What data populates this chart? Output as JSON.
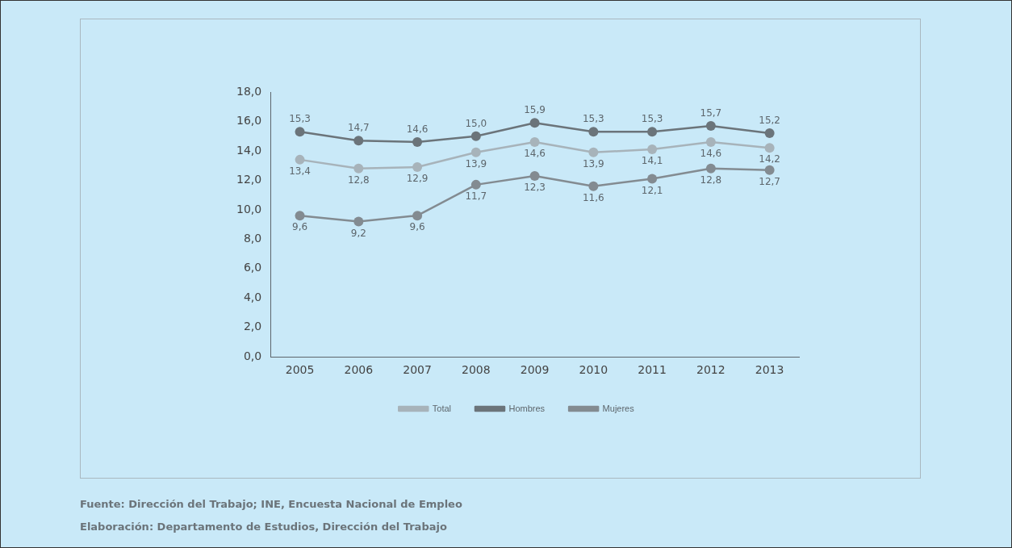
{
  "chart_data": {
    "type": "line",
    "categories": [
      "2005",
      "2006",
      "2007",
      "2008",
      "2009",
      "2010",
      "2011",
      "2012",
      "2013"
    ],
    "series": [
      {
        "name": "Total",
        "color": "#a7b3ba",
        "values": [
          13.4,
          12.8,
          12.9,
          13.9,
          14.6,
          13.9,
          14.1,
          14.6,
          14.2
        ],
        "value_labels": [
          "13,4",
          "12,8",
          "12,9",
          "13,9",
          "14,6",
          "13,9",
          "14,1",
          "14,6",
          "14,2"
        ]
      },
      {
        "name": "Hombres",
        "color": "#6b747a",
        "values": [
          15.3,
          14.7,
          14.6,
          15.0,
          15.9,
          15.3,
          15.3,
          15.7,
          15.2
        ],
        "value_labels": [
          "15,3",
          "14,7",
          "14,6",
          "15,0",
          "15,9",
          "15,3",
          "15,3",
          "15,7",
          "15,2"
        ]
      },
      {
        "name": "Mujeres",
        "color": "#838b91",
        "values": [
          9.6,
          9.2,
          9.6,
          11.7,
          12.3,
          11.6,
          12.1,
          12.8,
          12.7
        ],
        "value_labels": [
          "9,6",
          "9,2",
          "9,6",
          "11,7",
          "12,3",
          "11,6",
          "12,1",
          "12,8",
          "12,7"
        ]
      }
    ],
    "ylim": [
      0,
      18
    ],
    "yticks": [
      {
        "value": 0,
        "label": "0,0"
      },
      {
        "value": 2,
        "label": "2,0"
      },
      {
        "value": 4,
        "label": "4,0"
      },
      {
        "value": 6,
        "label": "6,0"
      },
      {
        "value": 8,
        "label": "8,0"
      },
      {
        "value": 10,
        "label": "10,0"
      },
      {
        "value": 12,
        "label": "12,0"
      },
      {
        "value": 14,
        "label": "14,0"
      },
      {
        "value": 16,
        "label": "16,0"
      },
      {
        "value": 18,
        "label": "18,0"
      }
    ],
    "grid": false,
    "legend": "bottom",
    "marker": "circle",
    "line_style": "solid",
    "annotations": [
      "Fuente: Dirección del Trabajo; INE, Encuesta Nacional de Empleo",
      "Elaboración: Departamento de Estudios, Dirección del Trabajo"
    ]
  }
}
